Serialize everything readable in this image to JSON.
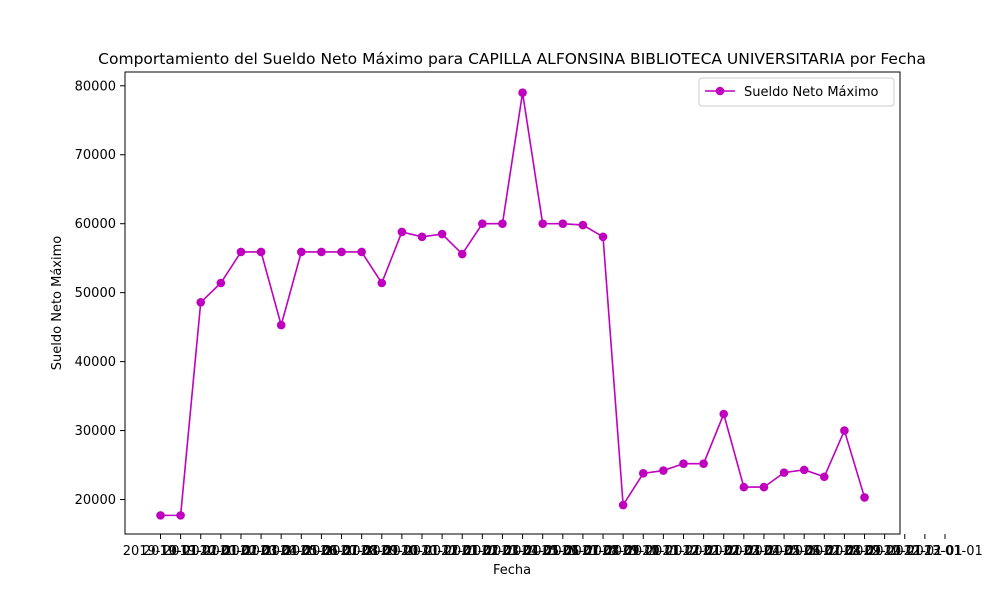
{
  "chart_data": {
    "type": "line",
    "title": "Comportamiento del Sueldo Neto Máximo para CAPILLA ALFONSINA BIBLIOTECA UNIVERSITARIA por Fecha",
    "xlabel": "Fecha",
    "ylabel": "Sueldo Neto Máximo",
    "ylim": [
      15000,
      82000
    ],
    "yticks": [
      20000,
      30000,
      40000,
      50000,
      60000,
      70000,
      80000
    ],
    "grid": false,
    "legend_position": "top-right",
    "series": [
      {
        "name": "Sueldo Neto Máximo",
        "color": "#bf00bf",
        "marker": "circle",
        "values": [
          17700,
          17700,
          48600,
          51400,
          55900,
          55900,
          45300,
          55900,
          55900,
          55900,
          55900,
          51400,
          58800,
          58100,
          58500,
          55600,
          60000,
          60000,
          79000,
          60000,
          60000,
          59800,
          58100,
          19200,
          23800,
          24200,
          25200,
          25200,
          32400,
          21800,
          21800,
          23900,
          24300,
          23300,
          30000,
          20300
        ]
      }
    ],
    "x": [
      "2019-10-01",
      "2019-11-01",
      "2019-12-01",
      "2020-01-01",
      "2020-02-01",
      "2020-03-01",
      "2020-04-01",
      "2020-05-01",
      "2020-06-01",
      "2020-07-01",
      "2020-08-01",
      "2020-09-01",
      "2020-10-01",
      "2020-11-01",
      "2020-12-01",
      "2021-01-01",
      "2021-02-01",
      "2021-03-01",
      "2021-04-01",
      "2021-05-01",
      "2021-06-01",
      "2021-07-01",
      "2021-08-01",
      "2021-09-01",
      "2021-10-01",
      "2021-11-01",
      "2021-12-01",
      "2022-01-01",
      "2022-02-01",
      "2022-03-01",
      "2022-04-01",
      "2022-05-01",
      "2022-06-01",
      "2022-07-01",
      "2022-08-01",
      "2022-09-01"
    ],
    "tick_labels": [
      "2019-10-01",
      "2019-11-01",
      "2019-12-01",
      "2020-01-01",
      "2020-02-01",
      "2020-03-01",
      "2020-04-01",
      "2020-05-01",
      "2020-06-01",
      "2020-07-01",
      "2020-08-01",
      "2020-09-01",
      "2020-10-01",
      "2020-11-01",
      "2020-12-01",
      "2021-01-01",
      "2021-02-01",
      "2021-03-01",
      "2021-04-01",
      "2021-05-01",
      "2021-06-01",
      "2021-07-01",
      "2021-08-01",
      "2021-09-01",
      "2021-10-01",
      "2021-11-01",
      "2021-12-01",
      "2022-01-01",
      "2022-02-01",
      "2022-03-01",
      "2022-04-01",
      "2022-05-01",
      "2022-06-01",
      "2022-07-01",
      "2022-08-01",
      "2022-09-01",
      "2022-10-01",
      "2022-11-01",
      "2022-12-01",
      "2023-01-01"
    ]
  }
}
